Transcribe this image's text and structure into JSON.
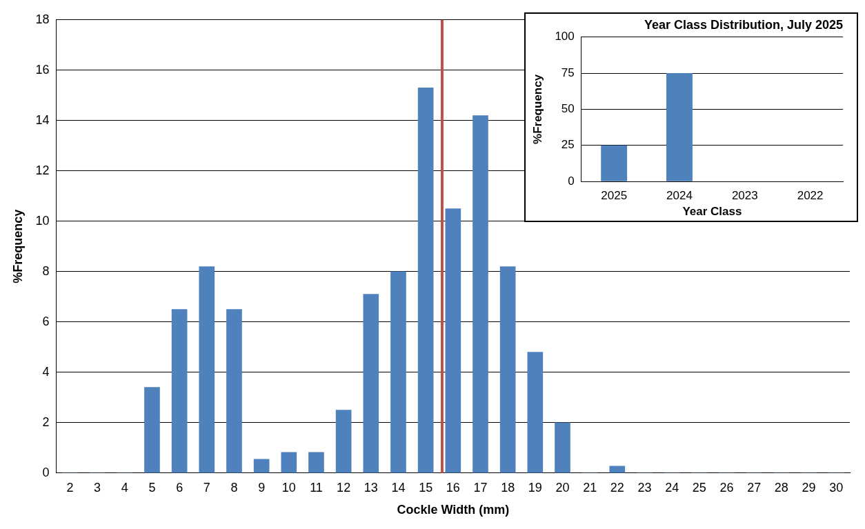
{
  "chart_data": [
    {
      "type": "bar",
      "xlabel": "Cockle Width (mm)",
      "ylabel": "%Frequency",
      "x": [
        2,
        3,
        4,
        5,
        6,
        7,
        8,
        9,
        10,
        11,
        12,
        13,
        14,
        15,
        16,
        17,
        18,
        19,
        20,
        21,
        22,
        23,
        24,
        25,
        26,
        27,
        28,
        29,
        30
      ],
      "values": [
        0,
        0,
        0,
        3.4,
        6.5,
        8.2,
        6.5,
        0.55,
        0.82,
        0.82,
        2.5,
        7.1,
        8.0,
        15.3,
        10.5,
        14.2,
        8.2,
        4.8,
        2.0,
        0,
        0.27,
        0,
        0,
        0,
        0,
        0,
        0,
        0,
        0
      ],
      "color": "#4f81bd",
      "xlim": [
        1.5,
        30.5
      ],
      "xticks": [
        2,
        3,
        4,
        5,
        6,
        7,
        8,
        9,
        10,
        11,
        12,
        13,
        14,
        15,
        16,
        17,
        18,
        19,
        20,
        21,
        22,
        23,
        24,
        25,
        26,
        27,
        28,
        29,
        30
      ],
      "ylim": [
        0,
        18
      ],
      "yticks": [
        0,
        2,
        4,
        6,
        8,
        10,
        12,
        14,
        16,
        18
      ],
      "grid": "y",
      "ref_lines": [
        {
          "axis": "x",
          "value": 15.6,
          "color": "#c0504d"
        }
      ]
    },
    {
      "type": "bar",
      "title": "Year Class Distribution, July 2025",
      "xlabel": "Year Class",
      "ylabel": "%Frequency",
      "categories": [
        "2025",
        "2024",
        "2023",
        "2022"
      ],
      "values": [
        25,
        75,
        0,
        0
      ],
      "color": "#4f81bd",
      "ylim": [
        0,
        100
      ],
      "yticks": [
        0,
        25,
        50,
        75,
        100
      ],
      "grid": "y"
    }
  ]
}
